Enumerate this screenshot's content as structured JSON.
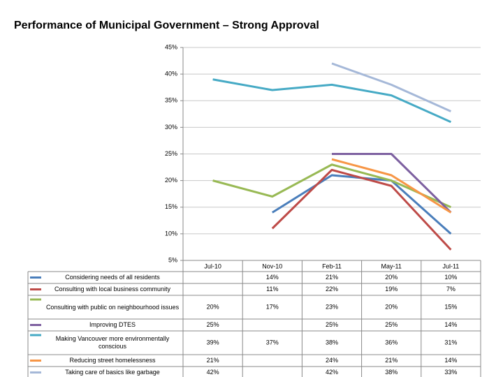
{
  "chart_data": {
    "type": "line",
    "title": "Performance of Municipal Government – Strong Approval",
    "categories": [
      "Jul-10",
      "Nov-10",
      "Feb-11",
      "May-11",
      "Jul-11"
    ],
    "ylim": [
      5,
      45
    ],
    "yticks": [
      {
        "value": 5,
        "label": "5%"
      },
      {
        "value": 10,
        "label": "10%"
      },
      {
        "value": 15,
        "label": "15%"
      },
      {
        "value": 20,
        "label": "20%"
      },
      {
        "value": 25,
        "label": "25%"
      },
      {
        "value": 30,
        "label": "30%"
      },
      {
        "value": 35,
        "label": "35%"
      },
      {
        "value": 40,
        "label": "40%"
      },
      {
        "value": 45,
        "label": "45%"
      }
    ],
    "grid": true,
    "series": [
      {
        "name": "Considering needs of all residents",
        "color": "#4a7ebb",
        "values": [
          null,
          14,
          21,
          20,
          10
        ],
        "value_labels": [
          null,
          "14%",
          "21%",
          "20%",
          "10%"
        ]
      },
      {
        "name": "Consulting with local business community",
        "color": "#be4b48",
        "values": [
          null,
          11,
          22,
          19,
          7
        ],
        "value_labels": [
          null,
          "11%",
          "22%",
          "19%",
          "7%"
        ]
      },
      {
        "name": "Consulting with public on neighbourhood issues",
        "color": "#98b954",
        "values": [
          20,
          17,
          23,
          20,
          15
        ],
        "value_labels": [
          "20%",
          "17%",
          "23%",
          "20%",
          "15%"
        ]
      },
      {
        "name": "Improving DTES",
        "color": "#7d60a0",
        "values": [
          25,
          null,
          25,
          25,
          14
        ],
        "value_labels": [
          "25%",
          null,
          "25%",
          "25%",
          "14%"
        ]
      },
      {
        "name": "Making Vancouver more environmentally conscious",
        "color": "#46aac5",
        "values": [
          39,
          37,
          38,
          36,
          31
        ],
        "value_labels": [
          "39%",
          "37%",
          "38%",
          "36%",
          "31%"
        ]
      },
      {
        "name": "Reducing street homelessness",
        "color": "#f79646",
        "values": [
          21,
          null,
          24,
          21,
          14
        ],
        "value_labels": [
          "21%",
          null,
          "24%",
          "21%",
          "14%"
        ]
      },
      {
        "name": "Taking care of basics like garbage",
        "color": "#a5b8d8",
        "values": [
          42,
          null,
          42,
          38,
          33
        ],
        "value_labels": [
          "42%",
          null,
          "42%",
          "38%",
          "33%"
        ]
      }
    ]
  }
}
